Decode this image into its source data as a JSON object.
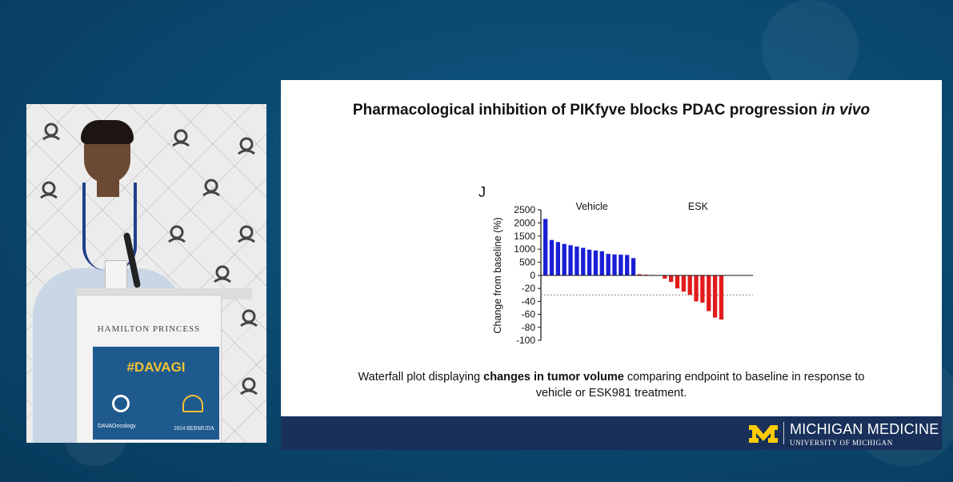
{
  "slide": {
    "title_main": "Pharmacological inhibition of PIKfyve blocks PDAC progression ",
    "title_emph": "in vivo",
    "caption_pre": "Waterfall plot displaying ",
    "caption_bold": "changes in tumor volume",
    "caption_post": " comparing endpoint to baseline in response to vehicle or ESK981 treatment."
  },
  "footer": {
    "org": "MICHIGAN MEDICINE",
    "university": "UNIVERSITY OF MICHIGAN",
    "brand_color": "#18305a",
    "accent_color": "#ffcb05"
  },
  "podium": {
    "brand": "HAMILTON PRINCESS",
    "hashtag": "#DAVAGI",
    "dava": "DAVAOncology",
    "event": "2024 BERMUDA"
  },
  "chart_data": {
    "type": "bar",
    "panel_label": "J",
    "ylabel": "Change from baseline (%)",
    "y_ticks": [
      "2500",
      "2000",
      "1500",
      "1000",
      "500",
      "0",
      "-20",
      "-40",
      "-60",
      "-80",
      "-100"
    ],
    "scale_note": "broken y-axis: 0 to 2500 upper segment, 0 to -100 lower segment",
    "reference_line": -30,
    "series": [
      {
        "name": "Vehicle",
        "color": "#1a1fd6",
        "values": [
          2150,
          1350,
          1270,
          1200,
          1150,
          1100,
          1050,
          980,
          950,
          920,
          820,
          800,
          790,
          780,
          660
        ]
      },
      {
        "name": "ESK",
        "color": "#e21b1b",
        "values": [
          45,
          30,
          20,
          10,
          -5,
          -10,
          -20,
          -25,
          -30,
          -40,
          -42,
          -55,
          -65,
          -68
        ]
      }
    ]
  }
}
